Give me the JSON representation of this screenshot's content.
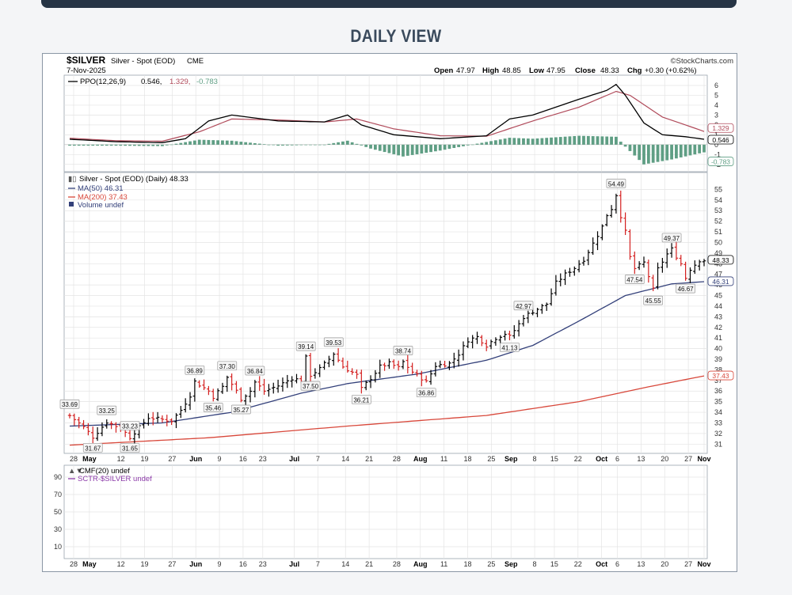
{
  "page": {
    "title": "DAILY VIEW"
  },
  "header": {
    "symbol": "$SILVER",
    "description": "Silver - Spot (EOD)",
    "exchange": "CME",
    "watermark": "©StockCharts.com",
    "date": "7-Nov-2025",
    "open_label": "Open",
    "open": "47.97",
    "high_label": "High",
    "high": "48.85",
    "low_label": "Low",
    "low": "47.95",
    "close_label": "Close",
    "close": "48.33",
    "chg_label": "Chg",
    "chg": "+0.30 (+0.62%)"
  },
  "ppo_panel": {
    "legend_name": "PPO(12,26,9)",
    "legend_v1": "0.546,",
    "legend_v2": "1.329,",
    "legend_v3": "-0.783",
    "colors": {
      "ppo": "#000000",
      "signal": "#b04a5a",
      "hist": "#5f9e84"
    }
  },
  "price_panel": {
    "legend_main": "Silver - Spot (EOD) (Daily) 48.33",
    "legend_ma50": "MA(50) 46.31",
    "legend_ma200": "MA(200) 37.43",
    "legend_volume": "Volume undef",
    "colors": {
      "up": "#000000",
      "down": "#d42020",
      "ma50": "#33407a",
      "ma200": "#d8473a"
    }
  },
  "cmf_panel": {
    "legend_cmf": "CMF(20) undef",
    "legend_sctr": "SCTR-$SILVER undef",
    "axis_ticks": [
      "90",
      "70",
      "50",
      "30",
      "10"
    ]
  },
  "chart_data": [
    {
      "type": "ohlc",
      "title": "Silver - Spot (EOD) (Daily) 48.33",
      "ylim": [
        30.5,
        56
      ],
      "y_ticks": [
        31,
        32,
        33,
        34,
        35,
        36,
        37,
        38,
        39,
        40,
        41,
        42,
        43,
        44,
        45,
        46,
        47,
        48,
        49,
        50,
        51,
        52,
        53,
        54,
        55
      ],
      "x_labels": [
        "28",
        "May",
        "12",
        "19",
        "27",
        "Jun",
        "9",
        "16",
        "23",
        "Jul",
        "7",
        "14",
        "21",
        "28",
        "Aug",
        "11",
        "18",
        "25",
        "Sep",
        "8",
        "15",
        "22",
        "Oct",
        "6",
        "13",
        "20",
        "27",
        "Nov"
      ],
      "price_anchors": [
        [
          0,
          33.69
        ],
        [
          3,
          32.6
        ],
        [
          5,
          31.67
        ],
        [
          8,
          33.1
        ],
        [
          11,
          32.5
        ],
        [
          13,
          31.65
        ],
        [
          17,
          33.5
        ],
        [
          22,
          33.2
        ],
        [
          24,
          34.2
        ],
        [
          26,
          35.6
        ],
        [
          27,
          36.89
        ],
        [
          30,
          36.0
        ],
        [
          31,
          35.46
        ],
        [
          33,
          36.4
        ],
        [
          34,
          37.3
        ],
        [
          36,
          36.0
        ],
        [
          37,
          35.27
        ],
        [
          39,
          36.0
        ],
        [
          40,
          36.84
        ],
        [
          42,
          36.0
        ],
        [
          45,
          36.5
        ],
        [
          48,
          37.2
        ],
        [
          50,
          37.0
        ],
        [
          51,
          39.14
        ],
        [
          52,
          37.5
        ],
        [
          54,
          38.1
        ],
        [
          56,
          39.0
        ],
        [
          57,
          39.53
        ],
        [
          59,
          38.3
        ],
        [
          62,
          37.5
        ],
        [
          63,
          36.21
        ],
        [
          65,
          37.2
        ],
        [
          67,
          38.3
        ],
        [
          69,
          38.6
        ],
        [
          71,
          38.2
        ],
        [
          72,
          38.74
        ],
        [
          74,
          37.8
        ],
        [
          76,
          37.2
        ],
        [
          77,
          36.86
        ],
        [
          79,
          38.4
        ],
        [
          82,
          38.6
        ],
        [
          84,
          39.5
        ],
        [
          86,
          40.8
        ],
        [
          88,
          41.1
        ],
        [
          90,
          40.3
        ],
        [
          92,
          41.0
        ],
        [
          94,
          41.4
        ],
        [
          95,
          41.13
        ],
        [
          97,
          42.3
        ],
        [
          98,
          42.97
        ],
        [
          100,
          43.5
        ],
        [
          103,
          44.2
        ],
        [
          105,
          46.2
        ],
        [
          107,
          47.0
        ],
        [
          109,
          47.6
        ],
        [
          111,
          48.4
        ],
        [
          113,
          49.9
        ],
        [
          115,
          51.5
        ],
        [
          116,
          52.6
        ],
        [
          117,
          53.2
        ],
        [
          118,
          54.49
        ],
        [
          119,
          52.5
        ],
        [
          120,
          51.0
        ],
        [
          121,
          48.6
        ],
        [
          122,
          47.54
        ],
        [
          124,
          48.1
        ],
        [
          126,
          45.55
        ],
        [
          127,
          47.5
        ],
        [
          129,
          48.9
        ],
        [
          130,
          49.37
        ],
        [
          132,
          48.0
        ],
        [
          133,
          46.67
        ],
        [
          134,
          47.5
        ],
        [
          136,
          48.33
        ]
      ],
      "ma50_anchors": [
        [
          0,
          32.7
        ],
        [
          20,
          33.0
        ],
        [
          35,
          34.0
        ],
        [
          50,
          35.8
        ],
        [
          60,
          36.7
        ],
        [
          75,
          37.6
        ],
        [
          90,
          38.9
        ],
        [
          100,
          40.3
        ],
        [
          110,
          42.6
        ],
        [
          120,
          45.0
        ],
        [
          130,
          46.1
        ],
        [
          137,
          46.31
        ]
      ],
      "ma200_anchors": [
        [
          0,
          30.9
        ],
        [
          30,
          31.6
        ],
        [
          60,
          32.7
        ],
        [
          90,
          33.7
        ],
        [
          110,
          35.0
        ],
        [
          125,
          36.4
        ],
        [
          137,
          37.43
        ]
      ],
      "callouts": [
        {
          "label": "33.69",
          "bar": 0,
          "pos": "above"
        },
        {
          "label": "31.67",
          "bar": 5,
          "pos": "below"
        },
        {
          "label": "33.25",
          "bar": 8,
          "pos": "above"
        },
        {
          "label": "33.23",
          "bar": 13,
          "pos": "above"
        },
        {
          "label": "31.65",
          "bar": 13,
          "pos": "below"
        },
        {
          "label": "36.89",
          "bar": 27,
          "pos": "above"
        },
        {
          "label": "35.46",
          "bar": 31,
          "pos": "below"
        },
        {
          "label": "37.30",
          "bar": 34,
          "pos": "above"
        },
        {
          "label": "35.27",
          "bar": 37,
          "pos": "below"
        },
        {
          "label": "36.84",
          "bar": 40,
          "pos": "above"
        },
        {
          "label": "39.14",
          "bar": 51,
          "pos": "above"
        },
        {
          "label": "37.50",
          "bar": 52,
          "pos": "below"
        },
        {
          "label": "39.53",
          "bar": 57,
          "pos": "above"
        },
        {
          "label": "36.21",
          "bar": 63,
          "pos": "below"
        },
        {
          "label": "38.74",
          "bar": 72,
          "pos": "above"
        },
        {
          "label": "36.86",
          "bar": 77,
          "pos": "below"
        },
        {
          "label": "42.97",
          "bar": 98,
          "pos": "above"
        },
        {
          "label": "41.13",
          "bar": 95,
          "pos": "below"
        },
        {
          "label": "54.49",
          "bar": 118,
          "pos": "above"
        },
        {
          "label": "47.54",
          "bar": 122,
          "pos": "below"
        },
        {
          "label": "45.55",
          "bar": 126,
          "pos": "below"
        },
        {
          "label": "49.37",
          "bar": 130,
          "pos": "above"
        },
        {
          "label": "46.67",
          "bar": 133,
          "pos": "below"
        }
      ],
      "right_labels": [
        {
          "label": "48.33",
          "value": 48.33,
          "color": "#000000"
        },
        {
          "label": "46.31",
          "value": 46.31,
          "color": "#33407a"
        },
        {
          "label": "37.43",
          "value": 37.43,
          "color": "#d8473a"
        }
      ]
    },
    {
      "type": "line",
      "title": "PPO(12,26,9)",
      "ylim": [
        -2.5,
        6.8
      ],
      "y_ticks": [
        6,
        5,
        4,
        3,
        2,
        1,
        0,
        -1,
        -2
      ],
      "series": [
        {
          "name": "PPO",
          "anchors": [
            [
              0,
              0.55
            ],
            [
              10,
              0.3
            ],
            [
              20,
              0.2
            ],
            [
              25,
              0.6
            ],
            [
              30,
              2.4
            ],
            [
              35,
              3.0
            ],
            [
              45,
              2.4
            ],
            [
              55,
              2.3
            ],
            [
              60,
              3.0
            ],
            [
              63,
              2.0
            ],
            [
              70,
              1.0
            ],
            [
              80,
              0.6
            ],
            [
              90,
              0.9
            ],
            [
              95,
              2.6
            ],
            [
              100,
              3.0
            ],
            [
              110,
              4.6
            ],
            [
              116,
              5.5
            ],
            [
              118,
              6.1
            ],
            [
              120,
              5.0
            ],
            [
              124,
              2.2
            ],
            [
              128,
              1.0
            ],
            [
              133,
              0.8
            ],
            [
              137,
              0.55
            ]
          ]
        },
        {
          "name": "Signal",
          "anchors": [
            [
              0,
              0.65
            ],
            [
              10,
              0.4
            ],
            [
              20,
              0.35
            ],
            [
              28,
              1.3
            ],
            [
              35,
              2.6
            ],
            [
              45,
              2.5
            ],
            [
              55,
              2.3
            ],
            [
              62,
              2.6
            ],
            [
              70,
              1.6
            ],
            [
              80,
              0.9
            ],
            [
              90,
              0.85
            ],
            [
              100,
              2.4
            ],
            [
              110,
              3.8
            ],
            [
              118,
              5.4
            ],
            [
              121,
              5.0
            ],
            [
              128,
              2.8
            ],
            [
              133,
              2.0
            ],
            [
              137,
              1.33
            ]
          ]
        }
      ],
      "histogram": [
        [
          0,
          -0.1
        ],
        [
          10,
          -0.1
        ],
        [
          20,
          -0.15
        ],
        [
          28,
          0.5
        ],
        [
          35,
          0.4
        ],
        [
          45,
          -0.1
        ],
        [
          55,
          0.0
        ],
        [
          60,
          0.4
        ],
        [
          65,
          -0.4
        ],
        [
          72,
          -1.2
        ],
        [
          80,
          -0.6
        ],
        [
          88,
          0.1
        ],
        [
          95,
          0.7
        ],
        [
          100,
          0.6
        ],
        [
          110,
          0.9
        ],
        [
          118,
          0.8
        ],
        [
          120,
          -0.2
        ],
        [
          124,
          -2.0
        ],
        [
          130,
          -1.5
        ],
        [
          137,
          -0.78
        ]
      ],
      "right_labels": [
        {
          "label": "1.329",
          "value": 1.329,
          "color": "#b04a5a"
        },
        {
          "label": "0.546",
          "value": 0.546,
          "color": "#000000"
        },
        {
          "label": "-0.783",
          "value": -0.783,
          "color": "#5f9e84"
        }
      ]
    }
  ]
}
